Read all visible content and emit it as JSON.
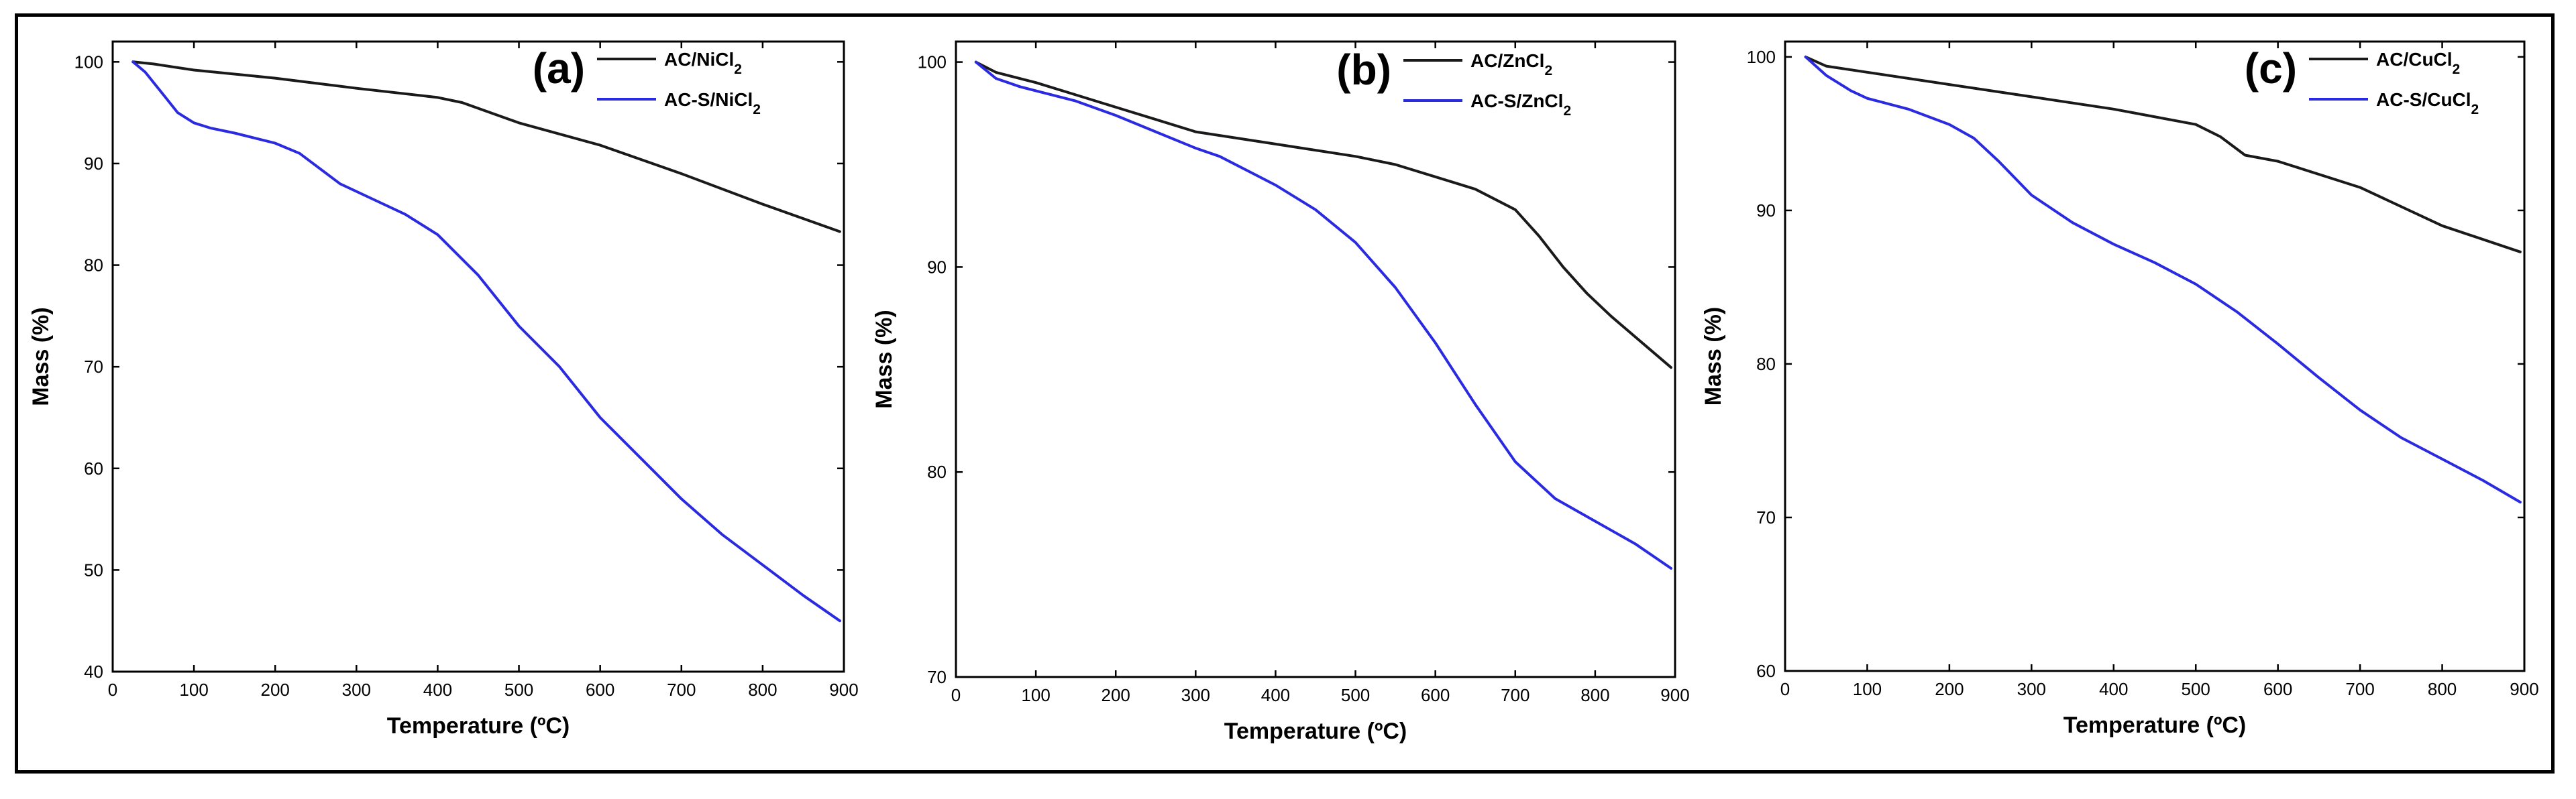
{
  "chart_data": [
    {
      "type": "line",
      "panel_label": "(a)",
      "xlabel": "Temperature (ºC)",
      "ylabel": "Mass (%)",
      "xlim": [
        0,
        900
      ],
      "ylim": [
        40,
        102
      ],
      "xticks": [
        0,
        100,
        200,
        300,
        400,
        500,
        600,
        700,
        800,
        900
      ],
      "yticks": [
        40,
        50,
        60,
        70,
        80,
        90,
        100
      ],
      "xtick_labels": [
        "0",
        "100",
        "200",
        "300",
        "400",
        "500",
        "600",
        "700",
        "800",
        "900"
      ],
      "ytick_labels": [
        "40",
        "50",
        "60",
        "70",
        "80",
        "90",
        "100"
      ],
      "legend_position": "top-right",
      "series": [
        {
          "name": "AC/NiCl",
          "subscript": "2",
          "color": "#1a1a1a",
          "x": [
            25,
            50,
            100,
            200,
            300,
            400,
            430,
            500,
            600,
            700,
            800,
            895
          ],
          "y": [
            100,
            99.8,
            99.2,
            98.4,
            97.4,
            96.5,
            96.0,
            94.0,
            91.8,
            89.0,
            86.0,
            83.3
          ]
        },
        {
          "name": "AC-S/NiCl",
          "subscript": "2",
          "color": "#2a2ae0",
          "x": [
            25,
            40,
            60,
            80,
            100,
            120,
            150,
            200,
            230,
            280,
            320,
            360,
            400,
            450,
            500,
            550,
            600,
            650,
            700,
            750,
            800,
            850,
            895
          ],
          "y": [
            100,
            99,
            97,
            95,
            94,
            93.5,
            93,
            92,
            91,
            88,
            86.5,
            85,
            83,
            79,
            74,
            70,
            65,
            61,
            57,
            53.5,
            50.5,
            47.5,
            45
          ]
        }
      ]
    },
    {
      "type": "line",
      "panel_label": "(b)",
      "xlabel": "Temperature (ºC)",
      "ylabel": "Mass (%)",
      "xlim": [
        0,
        900
      ],
      "ylim": [
        70,
        101
      ],
      "xticks": [
        0,
        100,
        200,
        300,
        400,
        500,
        600,
        700,
        800,
        900
      ],
      "yticks": [
        70,
        80,
        90,
        100
      ],
      "xtick_labels": [
        "0",
        "100",
        "200",
        "300",
        "400",
        "500",
        "600",
        "700",
        "800",
        "900"
      ],
      "ytick_labels": [
        "70",
        "80",
        "90",
        "100"
      ],
      "legend_position": "top-right",
      "series": [
        {
          "name": "AC/ZnCl",
          "subscript": "2",
          "color": "#1a1a1a",
          "x": [
            25,
            50,
            100,
            150,
            200,
            250,
            300,
            400,
            500,
            550,
            600,
            650,
            700,
            730,
            760,
            790,
            820,
            850,
            895
          ],
          "y": [
            100,
            99.5,
            99,
            98.4,
            97.8,
            97.2,
            96.6,
            96,
            95.4,
            95,
            94.4,
            93.8,
            92.8,
            91.5,
            90,
            88.7,
            87.6,
            86.6,
            85.1
          ]
        },
        {
          "name": "AC-S/ZnCl",
          "subscript": "2",
          "color": "#2a2ae0",
          "x": [
            25,
            50,
            80,
            100,
            150,
            200,
            250,
            300,
            330,
            400,
            450,
            500,
            550,
            600,
            650,
            700,
            750,
            800,
            850,
            895
          ],
          "y": [
            100,
            99.2,
            98.8,
            98.6,
            98.1,
            97.4,
            96.6,
            95.8,
            95.4,
            94,
            92.8,
            91.2,
            89,
            86.3,
            83.3,
            80.5,
            78.7,
            77.6,
            76.5,
            75.3
          ]
        }
      ]
    },
    {
      "type": "line",
      "panel_label": "(c)",
      "xlabel": "Temperature (ºC)",
      "ylabel": "Mass (%)",
      "xlim": [
        0,
        900
      ],
      "ylim": [
        60,
        101
      ],
      "xticks": [
        0,
        100,
        200,
        300,
        400,
        500,
        600,
        700,
        800,
        900
      ],
      "yticks": [
        60,
        70,
        80,
        90,
        100
      ],
      "xtick_labels": [
        "0",
        "100",
        "200",
        "300",
        "400",
        "500",
        "600",
        "700",
        "800",
        "900"
      ],
      "ytick_labels": [
        "60",
        "70",
        "80",
        "90",
        "100"
      ],
      "legend_position": "top-right",
      "series": [
        {
          "name": "AC/CuCl",
          "subscript": "2",
          "color": "#1a1a1a",
          "x": [
            25,
            50,
            100,
            200,
            300,
            400,
            500,
            530,
            560,
            600,
            700,
            800,
            895
          ],
          "y": [
            100,
            99.4,
            99,
            98.2,
            97.4,
            96.6,
            95.6,
            94.8,
            93.6,
            93.2,
            91.5,
            89,
            87.3
          ]
        },
        {
          "name": "AC-S/CuCl",
          "subscript": "2",
          "color": "#2a2ae0",
          "x": [
            25,
            50,
            80,
            100,
            150,
            200,
            230,
            260,
            300,
            350,
            400,
            450,
            500,
            550,
            600,
            650,
            700,
            750,
            800,
            850,
            895
          ],
          "y": [
            100,
            98.8,
            97.8,
            97.3,
            96.6,
            95.6,
            94.7,
            93.2,
            91,
            89.2,
            87.8,
            86.6,
            85.2,
            83.4,
            81.3,
            79.1,
            77,
            75.2,
            73.8,
            72.4,
            71
          ]
        }
      ]
    }
  ]
}
